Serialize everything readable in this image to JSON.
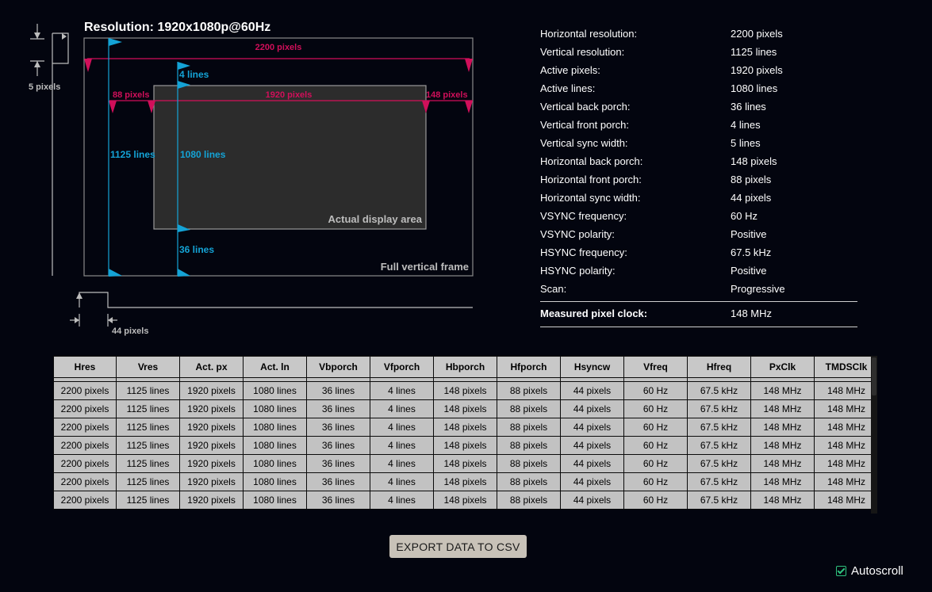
{
  "diagram": {
    "title": "Resolution: 1920x1080p@60Hz",
    "total_h_label": "2200 pixels",
    "active_h_label": "1920 pixels",
    "hfp_label": "88 pixels",
    "hbp_label": "148 pixels",
    "vfp_label": "4 lines",
    "vbp_label": "36 lines",
    "total_v_label": "1125 lines",
    "active_v_label": "1080 lines",
    "vsync_label": "5 pixels",
    "hsync_label": "44 pixels",
    "active_area_label": "Actual display area",
    "full_frame_label": "Full vertical frame",
    "colors": {
      "magenta": "#d10f5a",
      "cyan": "#14a3d6",
      "outline": "#8a8a8a"
    }
  },
  "info": {
    "rows": [
      {
        "label": "Horizontal resolution:",
        "value": "2200 pixels"
      },
      {
        "label": "Vertical resolution:",
        "value": "1125 lines"
      },
      {
        "label": "Active pixels:",
        "value": "1920 pixels"
      },
      {
        "label": "Active lines:",
        "value": "1080 lines"
      },
      {
        "label": "Vertical back porch:",
        "value": "36 lines"
      },
      {
        "label": "Vertical front porch:",
        "value": "4 lines"
      },
      {
        "label": "Vertical sync width:",
        "value": "5 lines"
      },
      {
        "label": "Horizontal back porch:",
        "value": "148 pixels"
      },
      {
        "label": "Horizontal front porch:",
        "value": "88 pixels"
      },
      {
        "label": "Horizontal sync width:",
        "value": "44 pixels"
      },
      {
        "label": "VSYNC frequency:",
        "value": "60 Hz"
      },
      {
        "label": "VSYNC polarity:",
        "value": "Positive"
      },
      {
        "label": "HSYNC frequency:",
        "value": "67.5 kHz"
      },
      {
        "label": "HSYNC polarity:",
        "value": "Positive"
      },
      {
        "label": "Scan:",
        "value": "Progressive"
      }
    ],
    "clock_label": "Measured pixel clock:",
    "clock_value": "148 MHz"
  },
  "table": {
    "headers": [
      "Hres",
      "Vres",
      "Act. px",
      "Act. ln",
      "Vbporch",
      "Vfporch",
      "Hbporch",
      "Hfporch",
      "Hsyncw",
      "Vfreq",
      "Hfreq",
      "PxClk",
      "TMDSClk"
    ],
    "rows": [
      [
        "2200 pixels",
        "1125 lines",
        "1920 pixels",
        "1080 lines",
        "36 lines",
        "4 lines",
        "148 pixels",
        "88 pixels",
        "44 pixels",
        "60 Hz",
        "67.5 kHz",
        "148 MHz",
        "148 MHz"
      ],
      [
        "2200 pixels",
        "1125 lines",
        "1920 pixels",
        "1080 lines",
        "36 lines",
        "4 lines",
        "148 pixels",
        "88 pixels",
        "44 pixels",
        "60 Hz",
        "67.5 kHz",
        "148 MHz",
        "148 MHz"
      ],
      [
        "2200 pixels",
        "1125 lines",
        "1920 pixels",
        "1080 lines",
        "36 lines",
        "4 lines",
        "148 pixels",
        "88 pixels",
        "44 pixels",
        "60 Hz",
        "67.5 kHz",
        "148 MHz",
        "148 MHz"
      ],
      [
        "2200 pixels",
        "1125 lines",
        "1920 pixels",
        "1080 lines",
        "36 lines",
        "4 lines",
        "148 pixels",
        "88 pixels",
        "44 pixels",
        "60 Hz",
        "67.5 kHz",
        "148 MHz",
        "148 MHz"
      ],
      [
        "2200 pixels",
        "1125 lines",
        "1920 pixels",
        "1080 lines",
        "36 lines",
        "4 lines",
        "148 pixels",
        "88 pixels",
        "44 pixels",
        "60 Hz",
        "67.5 kHz",
        "148 MHz",
        "148 MHz"
      ],
      [
        "2200 pixels",
        "1125 lines",
        "1920 pixels",
        "1080 lines",
        "36 lines",
        "4 lines",
        "148 pixels",
        "88 pixels",
        "44 pixels",
        "60 Hz",
        "67.5 kHz",
        "148 MHz",
        "148 MHz"
      ],
      [
        "2200 pixels",
        "1125 lines",
        "1920 pixels",
        "1080 lines",
        "36 lines",
        "4 lines",
        "148 pixels",
        "88 pixels",
        "44 pixels",
        "60 Hz",
        "67.5 kHz",
        "148 MHz",
        "148 MHz"
      ]
    ]
  },
  "export_button": {
    "label": "EXPORT DATA TO CSV"
  },
  "autoscroll": {
    "label": "Autoscroll",
    "checked": true
  }
}
